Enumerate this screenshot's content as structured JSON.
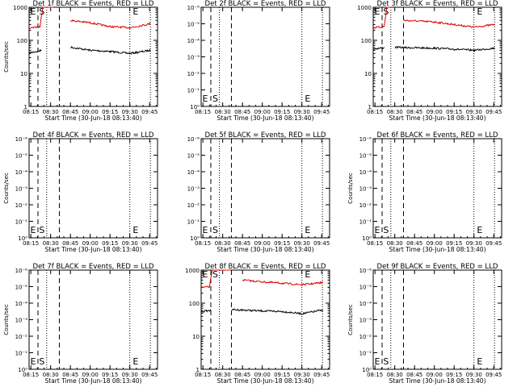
{
  "colors": {
    "events": "#000000",
    "lld": "#dd0000",
    "axis": "#000000",
    "background": "#ffffff"
  },
  "chart_data": [
    {
      "type": "line",
      "title": "Det 1f BLACK = Events, RED = LLD",
      "xlabel": "Start Time (30-Jun-18 08:13:40)",
      "ylabel": "Counts/sec",
      "x_tick_labels": [
        "08:15",
        "08:30",
        "08:45",
        "09:00",
        "09:15",
        "09:30",
        "09:45"
      ],
      "y_tick_labels": [
        "1000",
        "100",
        "10",
        "1"
      ],
      "ylim": [
        1,
        1000
      ],
      "markers": [
        {
          "label": "E",
          "time": "08:14"
        },
        {
          "label": "S",
          "time": "08:20"
        },
        {
          "label": "E",
          "time": "09:31"
        }
      ],
      "series": [
        {
          "name": "Events",
          "x": [
            "08:14",
            "08:22",
            "08:23",
            "08:44",
            "08:45",
            "09:00",
            "09:15",
            "09:30",
            "09:46"
          ],
          "values": [
            42,
            48,
            52,
            null,
            62,
            50,
            46,
            40,
            50
          ]
        },
        {
          "name": "LLD",
          "x": [
            "08:14",
            "08:22",
            "08:24",
            "08:32",
            "08:44",
            "08:45",
            "09:00",
            "09:15",
            "09:30",
            "09:46"
          ],
          "values": [
            240,
            260,
            1000,
            1000,
            null,
            400,
            340,
            260,
            240,
            320
          ]
        }
      ]
    },
    {
      "type": "line",
      "title": "Det 2f BLACK = Events, RED = LLD",
      "xlabel": "Start Time (30-Jun-18 08:13:40)",
      "ylabel": "",
      "x_tick_labels": [
        "08:15",
        "08:30",
        "08:45",
        "09:00",
        "09:15",
        "09:30",
        "09:45"
      ],
      "y_tick_labels": [
        "10⁻⁶",
        "10⁻⁵",
        "10⁻⁴",
        "10⁻³",
        "10⁻²",
        "10⁻¹",
        "10⁰"
      ],
      "ylim": [
        1e-06,
        1
      ],
      "markers": [
        {
          "label": "E",
          "time": "08:14"
        },
        {
          "label": "S",
          "time": "08:21"
        },
        {
          "label": "E",
          "time": "09:31"
        }
      ],
      "series": []
    },
    {
      "type": "line",
      "title": "Det 3f BLACK = Events, RED = LLD",
      "xlabel": "Start Time (30-Jun-18 08:13:40)",
      "ylabel": "",
      "x_tick_labels": [
        "08:15",
        "08:30",
        "08:45",
        "09:00",
        "09:15",
        "09:30",
        "09:45"
      ],
      "y_tick_labels": [
        "1000",
        "100",
        "10",
        "1"
      ],
      "ylim": [
        1,
        1000
      ],
      "markers": [
        {
          "label": "E",
          "time": "08:14"
        },
        {
          "label": "S",
          "time": "08:20"
        },
        {
          "label": "E",
          "time": "09:31"
        }
      ],
      "series": [
        {
          "name": "Events",
          "x": [
            "08:14",
            "08:22",
            "08:23",
            "08:30",
            "08:37",
            "09:00",
            "09:15",
            "09:30",
            "09:46"
          ],
          "values": [
            55,
            60,
            null,
            62,
            60,
            58,
            54,
            50,
            58
          ]
        },
        {
          "name": "LLD",
          "x": [
            "08:14",
            "08:22",
            "08:24",
            "08:28",
            "08:30",
            "08:37",
            "09:00",
            "09:15",
            "09:30",
            "09:46"
          ],
          "values": [
            240,
            260,
            1000,
            1000,
            null,
            400,
            360,
            300,
            250,
            300
          ]
        }
      ]
    },
    {
      "type": "line",
      "title": "Det 4f BLACK = Events, RED = LLD",
      "xlabel": "Start Time (30-Jun-18 08:13:40)",
      "ylabel": "Counts/sec",
      "x_tick_labels": [
        "08:15",
        "08:30",
        "08:45",
        "09:00",
        "09:15",
        "09:30",
        "09:45"
      ],
      "y_tick_labels": [
        "10⁻⁶",
        "10⁻⁵",
        "10⁻⁴",
        "10⁻³",
        "10⁻²",
        "10⁻¹",
        "10⁰"
      ],
      "ylim": [
        1e-06,
        1
      ],
      "markers": [
        {
          "label": "E",
          "time": "08:14"
        },
        {
          "label": "S",
          "time": "08:20"
        },
        {
          "label": "E",
          "time": "09:31"
        }
      ],
      "series": []
    },
    {
      "type": "line",
      "title": "Det 5f BLACK = Events, RED = LLD",
      "xlabel": "Start Time (30-Jun-18 08:13:40)",
      "ylabel": "",
      "x_tick_labels": [
        "08:15",
        "08:30",
        "08:45",
        "09:00",
        "09:15",
        "09:30",
        "09:45"
      ],
      "y_tick_labels": [
        "10⁻⁶",
        "10⁻⁵",
        "10⁻⁴",
        "10⁻³",
        "10⁻²",
        "10⁻¹",
        "10⁰"
      ],
      "ylim": [
        1e-06,
        1
      ],
      "markers": [
        {
          "label": "E",
          "time": "08:14"
        },
        {
          "label": "S",
          "time": "08:21"
        },
        {
          "label": "E",
          "time": "09:31"
        }
      ],
      "series": []
    },
    {
      "type": "line",
      "title": "Det 6f BLACK = Events, RED = LLD",
      "xlabel": "Start Time (30-Jun-18 08:13:40)",
      "ylabel": "Counts/sec",
      "x_tick_labels": [
        "08:15",
        "08:30",
        "08:45",
        "09:00",
        "09:15",
        "09:30",
        "09:45"
      ],
      "y_tick_labels": [
        "10⁻⁶",
        "10⁻⁵",
        "10⁻⁴",
        "10⁻³",
        "10⁻²",
        "10⁻¹",
        "10⁰"
      ],
      "ylim": [
        1e-06,
        1
      ],
      "markers": [
        {
          "label": "E",
          "time": "08:14"
        },
        {
          "label": "S",
          "time": "08:20"
        },
        {
          "label": "E",
          "time": "09:31"
        }
      ],
      "series": []
    },
    {
      "type": "line",
      "title": "Det 7f BLACK = Events, RED = LLD",
      "xlabel": "Start Time (30-Jun-18 08:13:40)",
      "ylabel": "Counts/sec",
      "x_tick_labels": [
        "08:15",
        "08:30",
        "08:45",
        "09:00",
        "09:15",
        "09:30",
        "09:45"
      ],
      "y_tick_labels": [
        "10⁻⁶",
        "10⁻⁵",
        "10⁻⁴",
        "10⁻³",
        "10⁻²",
        "10⁻¹",
        "10⁰"
      ],
      "ylim": [
        1e-06,
        1
      ],
      "markers": [
        {
          "label": "E",
          "time": "08:14"
        },
        {
          "label": "S",
          "time": "08:20"
        },
        {
          "label": "E",
          "time": "09:31"
        }
      ],
      "series": []
    },
    {
      "type": "line",
      "title": "Det 8f BLACK = Events, RED = LLD",
      "xlabel": "Start Time (30-Jun-18 08:13:40)",
      "ylabel": "",
      "x_tick_labels": [
        "08:15",
        "08:30",
        "08:45",
        "09:00",
        "09:15",
        "09:30",
        "09:45"
      ],
      "y_tick_labels": [
        "1000",
        "100",
        "10",
        "1"
      ],
      "ylim": [
        1,
        1000
      ],
      "markers": [
        {
          "label": "E",
          "time": "08:14"
        },
        {
          "label": "S",
          "time": "08:21"
        },
        {
          "label": "E",
          "time": "09:31"
        }
      ],
      "series": [
        {
          "name": "Events",
          "x": [
            "08:14",
            "08:20",
            "08:21",
            "08:36",
            "08:37",
            "09:00",
            "09:15",
            "09:30",
            "09:46"
          ],
          "values": [
            56,
            60,
            62,
            null,
            64,
            58,
            56,
            48,
            62
          ]
        },
        {
          "name": "LLD",
          "x": [
            "08:14",
            "08:20",
            "08:22",
            "08:36",
            "08:37",
            "08:45",
            "09:00",
            "09:15",
            "09:30",
            "09:46"
          ],
          "values": [
            300,
            310,
            1000,
            1000,
            null,
            500,
            440,
            400,
            360,
            420
          ]
        }
      ]
    },
    {
      "type": "line",
      "title": "Det 9f BLACK = Events, RED = LLD",
      "xlabel": "Start Time (30-Jun-18 08:13:40)",
      "ylabel": "Counts/sec",
      "x_tick_labels": [
        "08:15",
        "08:30",
        "08:45",
        "09:00",
        "09:15",
        "09:30",
        "09:45"
      ],
      "y_tick_labels": [
        "10⁻⁶",
        "10⁻⁵",
        "10⁻⁴",
        "10⁻³",
        "10⁻²",
        "10⁻¹",
        "10⁰"
      ],
      "ylim": [
        1e-06,
        1
      ],
      "markers": [
        {
          "label": "E",
          "time": "08:14"
        },
        {
          "label": "S",
          "time": "08:20"
        },
        {
          "label": "E",
          "time": "09:31"
        }
      ],
      "series": []
    }
  ]
}
